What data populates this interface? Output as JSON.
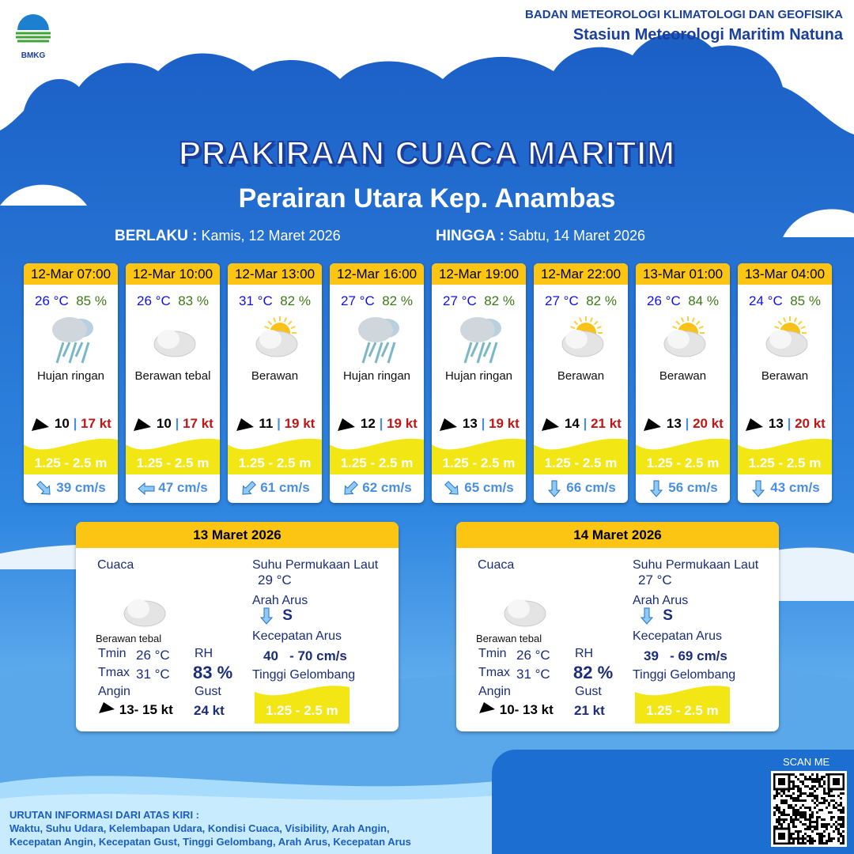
{
  "header": {
    "agency": "BADAN METEOROLOGI KLIMATOLOGI DAN GEOFISIKA",
    "station": "Stasiun Meteorologi Maritim Natuna",
    "logo_text": "BMKG"
  },
  "title": "PRAKIRAAN CUACA MARITIM",
  "subtitle": "Perairan Utara Kep. Anambas",
  "validity": {
    "from_label": "BERLAKU :",
    "from": "Kamis, 12 Maret 2026",
    "to_label": "HINGGA :",
    "to": "Sabtu, 14 Maret 2026"
  },
  "forecasts": [
    {
      "time": "12-Mar 07:00",
      "temp": "26 °C",
      "rh": "85 %",
      "icon": "rain-cloud-icon",
      "cond": "Hujan ringan",
      "wind": "10",
      "sep": "|",
      "gust": "17 kt",
      "wave": "1.25 - 2.5 m",
      "cur_dir": "SE",
      "cur": "39 cm/s"
    },
    {
      "time": "12-Mar 10:00",
      "temp": "26 °C",
      "rh": "83 %",
      "icon": "thick-cloud-icon",
      "cond": "Berawan tebal",
      "wind": "10",
      "sep": "|",
      "gust": "17 kt",
      "wave": "1.25 - 2.5 m",
      "cur_dir": "W",
      "cur": "47 cm/s"
    },
    {
      "time": "12-Mar 13:00",
      "temp": "31 °C",
      "rh": "82 %",
      "icon": "sun-cloud-icon",
      "cond": "Berawan",
      "wind": "11",
      "sep": "|",
      "gust": "19 kt",
      "wave": "1.25 - 2.5 m",
      "cur_dir": "SW",
      "cur": "61 cm/s"
    },
    {
      "time": "12-Mar 16:00",
      "temp": "27 °C",
      "rh": "82 %",
      "icon": "rain-cloud-icon",
      "cond": "Hujan ringan",
      "wind": "12",
      "sep": "|",
      "gust": "19 kt",
      "wave": "1.25 - 2.5 m",
      "cur_dir": "SW",
      "cur": "62 cm/s"
    },
    {
      "time": "12-Mar 19:00",
      "temp": "27 °C",
      "rh": "82 %",
      "icon": "rain-cloud-icon",
      "cond": "Hujan ringan",
      "wind": "13",
      "sep": "|",
      "gust": "19 kt",
      "wave": "1.25 - 2.5 m",
      "cur_dir": "SE",
      "cur": "65 cm/s"
    },
    {
      "time": "12-Mar 22:00",
      "temp": "27 °C",
      "rh": "82 %",
      "icon": "sun-cloud-icon",
      "cond": "Berawan",
      "wind": "14",
      "sep": "|",
      "gust": "21 kt",
      "wave": "1.25 - 2.5 m",
      "cur_dir": "S",
      "cur": "66 cm/s"
    },
    {
      "time": "13-Mar 01:00",
      "temp": "26 °C",
      "rh": "84 %",
      "icon": "sun-cloud-icon",
      "cond": "Berawan",
      "wind": "13",
      "sep": "|",
      "gust": "20 kt",
      "wave": "1.25 - 2.5 m",
      "cur_dir": "S",
      "cur": "56 cm/s"
    },
    {
      "time": "13-Mar 04:00",
      "temp": "24 °C",
      "rh": "85 %",
      "icon": "sun-cloud-icon",
      "cond": "Berawan",
      "wind": "13",
      "sep": "|",
      "gust": "20 kt",
      "wave": "1.25 - 2.5 m",
      "cur_dir": "S",
      "cur": "43 cm/s"
    }
  ],
  "labels": {
    "cuaca": "Cuaca",
    "tmin": "Tmin",
    "tmax": "Tmax",
    "angin": "Angin",
    "rh": "RH",
    "gust": "Gust",
    "sst": "Suhu Permukaan Laut",
    "arah_arus": "Arah Arus",
    "kec_arus": "Kecepatan Arus",
    "tinggi": "Tinggi Gelombang"
  },
  "daily": [
    {
      "date": "13 Maret 2026",
      "cond": "Berawan tebal",
      "tmin": "26 °C",
      "tmax": "31 °C",
      "rh": "83 %",
      "wind": "13- 15 kt",
      "gust": "24 kt",
      "sst": "29 °C",
      "cur_dir": "S",
      "cur_min": "40",
      "cur_max": "- 70 cm/s",
      "wave": "1.25 - 2.5 m"
    },
    {
      "date": "14 Maret 2026",
      "cond": "Berawan tebal",
      "tmin": "26 °C",
      "tmax": "31 °C",
      "rh": "82 %",
      "wind": "10- 13 kt",
      "gust": "21 kt",
      "sst": "27 °C",
      "cur_dir": "S",
      "cur_min": "39",
      "cur_max": "- 69 cm/s",
      "wave": "1.25 - 2.5 m"
    }
  ],
  "footer": {
    "legend_title": "URUTAN INFORMASI DARI ATAS KIRI :",
    "legend_line1": "Waktu, Suhu Udara, Kelembapan Udara, Kondisi Cuaca, Visibility, Arah Angin,",
    "legend_line2": "Kecepatan Angin, Kecepatan Gust, Tinggi Gelombang, Arah Arus, Kecepatan Arus",
    "scan": "SCAN ME"
  },
  "colors": {
    "header_yellow": "#fcc514",
    "wave_yellow": "#f2e614",
    "temp": "#1010e8",
    "rh": "#3d7a15",
    "gust": "#c01616",
    "current": "#4a8ee0"
  }
}
